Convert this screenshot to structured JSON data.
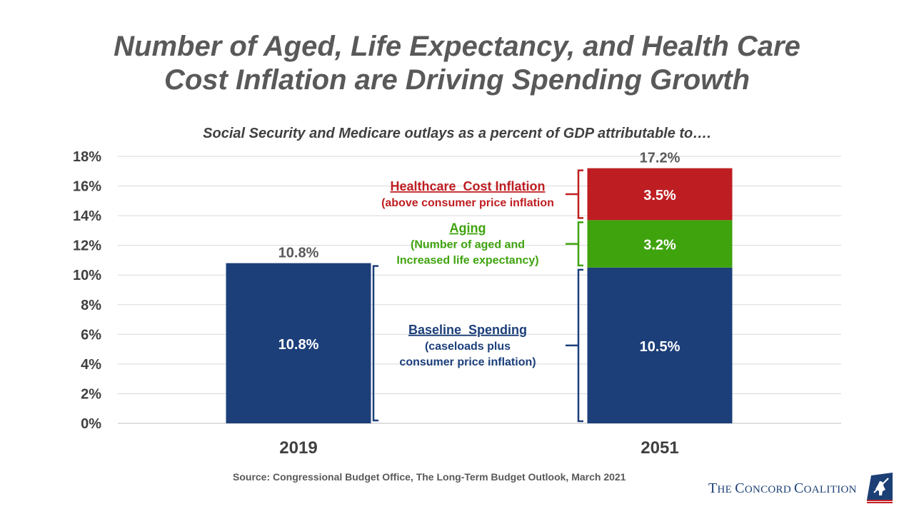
{
  "title_line1": "Number of Aged, Life Expectancy, and Health Care",
  "title_line2": "Cost Inflation are Driving Spending Growth",
  "subtitle": "Social Security and Medicare outlays as a percent of GDP attributable to….",
  "source": "Source: Congressional Budget Office,  The Long-Term Budget Outlook, March 2021",
  "logo": {
    "text": "The Concord Coalition",
    "accent_blue": "#1c3f75",
    "accent_red": "#c0202a"
  },
  "colors": {
    "baseline": "#1c3f7a",
    "aging": "#3fa30e",
    "healthcare": "#be1e22",
    "grid": "#d9d9d9",
    "axis_text": "#404040"
  },
  "chart_data": {
    "type": "bar",
    "stacked": true,
    "categories": [
      "2019",
      "2051"
    ],
    "ylim": [
      0,
      18
    ],
    "yticks": [
      0,
      2,
      4,
      6,
      8,
      10,
      12,
      14,
      16,
      18
    ],
    "ytick_labels": [
      "0%",
      "2%",
      "4%",
      "6%",
      "8%",
      "10%",
      "12%",
      "14%",
      "16%",
      "18%"
    ],
    "grid": true,
    "series": [
      {
        "key": "baseline",
        "values": [
          10.8,
          10.5
        ],
        "labels": [
          "10.8%",
          "10.5%"
        ]
      },
      {
        "key": "aging",
        "values": [
          0,
          3.2
        ],
        "labels": [
          "",
          "3.2%"
        ]
      },
      {
        "key": "healthcare",
        "values": [
          0,
          3.5
        ],
        "labels": [
          "",
          "3.5%"
        ]
      }
    ],
    "totals": [
      10.8,
      17.2
    ],
    "total_labels": [
      "10.8%",
      "17.2%"
    ],
    "annotations": [
      {
        "key": "healthcare",
        "heading": "Healthcare  Cost Inflation",
        "lines": [
          "(above consumer price inflation"
        ]
      },
      {
        "key": "aging",
        "heading": "Aging",
        "lines": [
          "(Number of aged and",
          "Increased life expectancy)"
        ]
      },
      {
        "key": "baseline",
        "heading": "Baseline  Spending",
        "lines": [
          "(caseloads plus",
          "consumer price inflation)"
        ]
      }
    ]
  }
}
